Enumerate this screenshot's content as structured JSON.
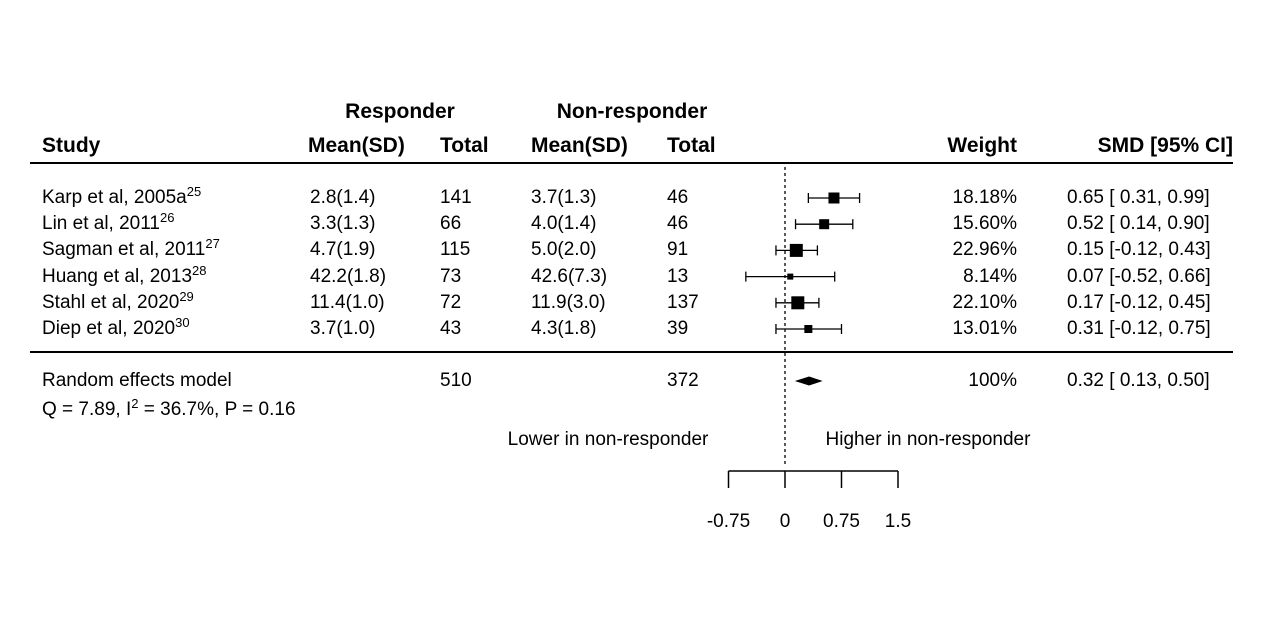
{
  "figure": {
    "background": "#ffffff",
    "ink_color": "#000000"
  },
  "chart_data": {
    "type": "forest",
    "title": "",
    "group_headers": [
      "Responder",
      "Non-responder"
    ],
    "columns": {
      "study": "Study",
      "mean_sd": "Mean(SD)",
      "total": "Total",
      "weight": "Weight",
      "smd": "SMD [95% CI]"
    },
    "studies": [
      {
        "label": "Karp et al, 2005a",
        "ref": "25",
        "responder_mean_sd": "2.8(1.4)",
        "responder_total": "141",
        "nonresponder_mean_sd": "3.7(1.3)",
        "nonresponder_total": "46",
        "weight": "18.18%",
        "smd": 0.65,
        "ci_low": 0.31,
        "ci_high": 0.99,
        "smd_text": "0.65 [ 0.31, 0.99]",
        "marker_size": 11
      },
      {
        "label": "Lin et al, 2011",
        "ref": "26",
        "responder_mean_sd": "3.3(1.3)",
        "responder_total": "66",
        "nonresponder_mean_sd": "4.0(1.4)",
        "nonresponder_total": "46",
        "weight": "15.60%",
        "smd": 0.52,
        "ci_low": 0.14,
        "ci_high": 0.9,
        "smd_text": "0.52 [ 0.14, 0.90]",
        "marker_size": 10
      },
      {
        "label": "Sagman et al, 2011",
        "ref": "27",
        "responder_mean_sd": "4.7(1.9)",
        "responder_total": "115",
        "nonresponder_mean_sd": "5.0(2.0)",
        "nonresponder_total": "91",
        "weight": "22.96%",
        "smd": 0.15,
        "ci_low": -0.12,
        "ci_high": 0.43,
        "smd_text": "0.15 [-0.12, 0.43]",
        "marker_size": 13
      },
      {
        "label": "Huang et al, 2013",
        "ref": "28",
        "responder_mean_sd": "42.2(1.8)",
        "responder_total": "73",
        "nonresponder_mean_sd": "42.6(7.3)",
        "nonresponder_total": "13",
        "weight": "8.14%",
        "smd": 0.07,
        "ci_low": -0.52,
        "ci_high": 0.66,
        "smd_text": "0.07 [-0.52, 0.66]",
        "marker_size": 6
      },
      {
        "label": "Stahl et al, 2020",
        "ref": "29",
        "responder_mean_sd": "11.4(1.0)",
        "responder_total": "72",
        "nonresponder_mean_sd": "11.9(3.0)",
        "nonresponder_total": "137",
        "weight": "22.10%",
        "smd": 0.17,
        "ci_low": -0.12,
        "ci_high": 0.45,
        "smd_text": "0.17 [-0.12, 0.45]",
        "marker_size": 13
      },
      {
        "label": "Diep et al, 2020",
        "ref": "30",
        "responder_mean_sd": "3.7(1.0)",
        "responder_total": "43",
        "nonresponder_mean_sd": "4.3(1.8)",
        "nonresponder_total": "39",
        "weight": "13.01%",
        "smd": 0.31,
        "ci_low": -0.12,
        "ci_high": 0.75,
        "smd_text": "0.31 [-0.12, 0.75]",
        "marker_size": 8
      }
    ],
    "summary": {
      "label": "Random effects model",
      "responder_total": "510",
      "nonresponder_total": "372",
      "weight": "100%",
      "smd": 0.32,
      "ci_low": 0.13,
      "ci_high": 0.5,
      "smd_text": "0.32 [ 0.13, 0.50]",
      "het_prefix": "Q = 7.89, I",
      "het_sup": "2",
      "het_suffix": " = 36.7%, P = 0.16"
    },
    "axis": {
      "range": [
        -0.75,
        1.5
      ],
      "ticks": [
        -0.75,
        0,
        0.75,
        1.5
      ],
      "tick_labels": [
        "-0.75",
        "0",
        "0.75",
        "1.5"
      ],
      "zero_line": 0
    },
    "footer_labels": {
      "left": "Lower in non-responder",
      "right": "Higher in non-responder"
    }
  }
}
